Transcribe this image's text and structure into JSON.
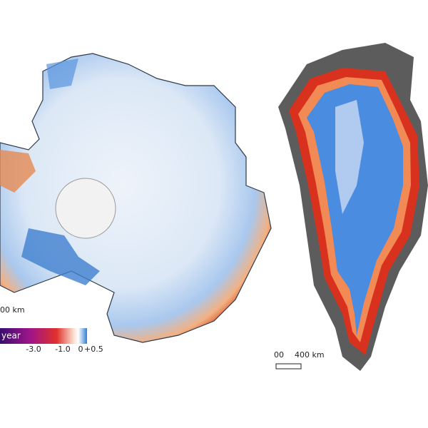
{
  "antarctica": {
    "scale_bar": "00 km",
    "colorbar": {
      "label": "year",
      "ticks": [
        "-3.0",
        "-1.0",
        "0",
        "+0.5"
      ]
    }
  },
  "greenland": {
    "scale_bar": {
      "start": "00",
      "end": "400 km"
    }
  }
}
